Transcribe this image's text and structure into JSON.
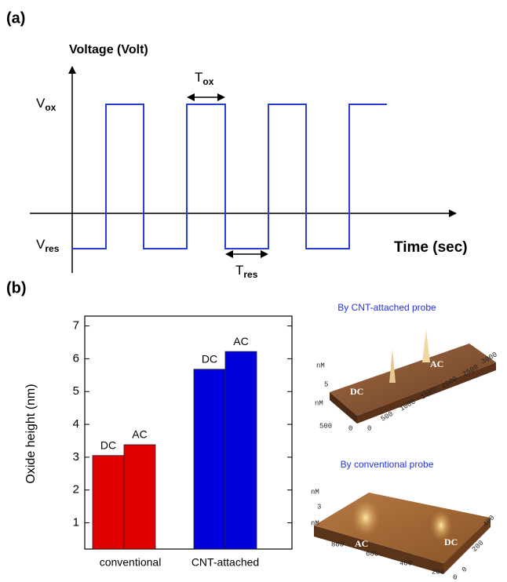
{
  "panel_a": {
    "label": "(a)",
    "y_axis_label": "Voltage (Volt)",
    "x_axis_label": "Time (sec)",
    "v_ox": {
      "main": "V",
      "sub": "ox"
    },
    "v_res": {
      "main": "V",
      "sub": "res"
    },
    "t_ox": {
      "main": "T",
      "sub": "ox"
    },
    "t_res": {
      "main": "T",
      "sub": "res"
    }
  },
  "chart_data": {
    "type": "bar",
    "panel_label": "(b)",
    "y_axis_label": "Oxide height (nm)",
    "categories": [
      "conventional",
      "CNT-attached"
    ],
    "category_colors": [
      "#e00000",
      "#0000dd"
    ],
    "series": [
      {
        "name": "DC",
        "values": [
          3.05,
          5.68
        ]
      },
      {
        "name": "AC",
        "values": [
          3.38,
          6.22
        ]
      }
    ],
    "ylim": [
      0.2,
      7.3
    ],
    "yticks": [
      1,
      2,
      3,
      4,
      5,
      6,
      7
    ]
  },
  "images": [
    {
      "title": "By CNT-attached probe",
      "labels": [
        "nM",
        "5",
        "nM",
        "500",
        "0",
        "0",
        "500",
        "1000",
        "1500",
        "2000",
        "2500",
        "3000",
        "DC",
        "AC"
      ]
    },
    {
      "title": "By conventional probe",
      "labels": [
        "nM",
        "3",
        "nM",
        "800",
        "600",
        "400",
        "200",
        "0",
        "0",
        "200",
        "400",
        "AC",
        "DC"
      ]
    }
  ]
}
